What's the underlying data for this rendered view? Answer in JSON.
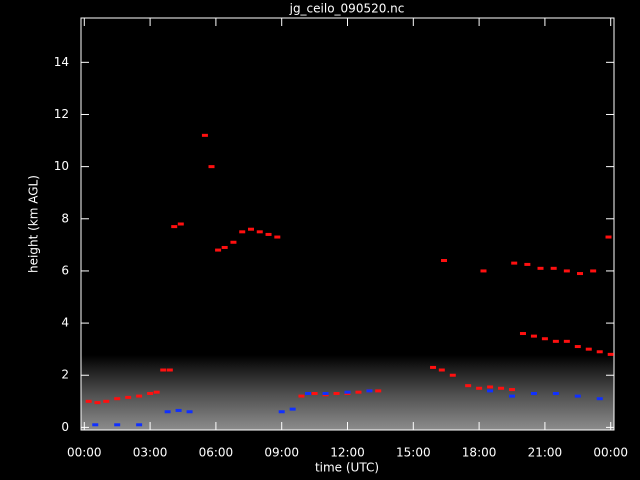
{
  "chart_data": {
    "type": "scatter",
    "title": "jg_ceilo_090520.nc",
    "x_label": "time (UTC)",
    "y_label": "height (km AGL)",
    "xlim": [
      -0.15,
      24.15
    ],
    "ylim": [
      -0.1,
      15.7
    ],
    "xticks": [
      {
        "value": 0,
        "label": "00:00"
      },
      {
        "value": 3,
        "label": "03:00"
      },
      {
        "value": 6,
        "label": "06:00"
      },
      {
        "value": 9,
        "label": "09:00"
      },
      {
        "value": 12,
        "label": "12:00"
      },
      {
        "value": 15,
        "label": "15:00"
      },
      {
        "value": 18,
        "label": "18:00"
      },
      {
        "value": 21,
        "label": "21:00"
      },
      {
        "value": 24,
        "label": "00:00"
      }
    ],
    "yticks": [
      0,
      2,
      4,
      6,
      8,
      10,
      12,
      14
    ],
    "series": [
      {
        "color": "#ff1010",
        "x": [
          0.2,
          0.6,
          1.0,
          1.5,
          2.0,
          2.5,
          3.0,
          3.3,
          3.6,
          3.9,
          4.1,
          4.4,
          5.5,
          5.8,
          6.1,
          6.4,
          6.8,
          7.2,
          7.6,
          8.0,
          8.4,
          8.8,
          9.9,
          10.5,
          11.0,
          11.5,
          12.0,
          12.5,
          13.0,
          13.4,
          15.9,
          16.3,
          16.8,
          17.5,
          18.0,
          18.5,
          19.0,
          19.5,
          16.4,
          18.2,
          19.6,
          20.2,
          20.8,
          21.4,
          22.0,
          22.6,
          23.2,
          20.0,
          20.5,
          21.0,
          21.5,
          22.0,
          22.5,
          23.0,
          23.5,
          24.0,
          23.9
        ],
        "values": [
          1.0,
          0.95,
          1.0,
          1.1,
          1.15,
          1.2,
          1.3,
          1.35,
          2.2,
          2.2,
          7.7,
          7.8,
          11.2,
          10.0,
          6.8,
          6.9,
          7.1,
          7.5,
          7.6,
          7.5,
          7.4,
          7.3,
          1.2,
          1.3,
          1.25,
          1.3,
          1.3,
          1.35,
          1.4,
          1.4,
          2.3,
          2.2,
          2.0,
          1.6,
          1.5,
          1.55,
          1.5,
          1.45,
          6.4,
          6.0,
          6.3,
          6.25,
          6.1,
          6.1,
          6.0,
          5.9,
          6.0,
          3.6,
          3.5,
          3.4,
          3.3,
          3.3,
          3.1,
          3.0,
          2.9,
          2.8,
          7.3
        ]
      },
      {
        "color": "#1030ff",
        "x": [
          0.5,
          1.5,
          2.5,
          3.8,
          4.3,
          4.8,
          9.0,
          9.5,
          10.2,
          11.0,
          12.0,
          13.0,
          18.5,
          19.5,
          20.5,
          21.5,
          22.5,
          23.5
        ],
        "values": [
          0.1,
          0.1,
          0.1,
          0.6,
          0.65,
          0.6,
          0.6,
          0.7,
          1.3,
          1.3,
          1.35,
          1.4,
          1.4,
          1.2,
          1.3,
          1.3,
          1.2,
          1.1
        ]
      }
    ]
  }
}
